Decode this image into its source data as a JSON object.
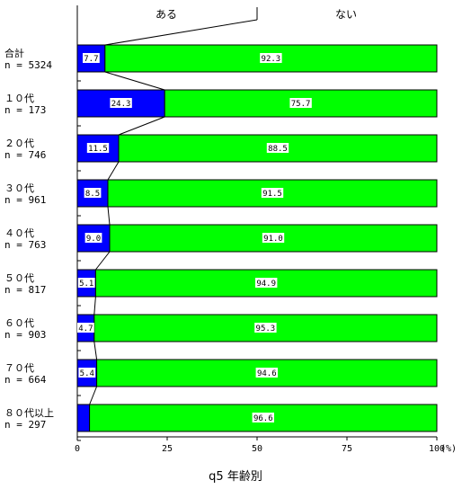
{
  "chart_data": {
    "type": "bar",
    "stacked": true,
    "orientation": "horizontal",
    "title": "q5 年齢別",
    "series": [
      {
        "name": "ある",
        "color": "#0000ff",
        "values": [
          7.7,
          24.3,
          11.5,
          8.5,
          9.0,
          5.1,
          4.7,
          5.4,
          3.4
        ],
        "labels": [
          "7.7",
          "24.3",
          "11.5",
          "8.5",
          "9.0",
          "5.1",
          "4.7",
          "5.4",
          ""
        ]
      },
      {
        "name": "ない",
        "color": "#00ff00",
        "values": [
          92.3,
          75.7,
          88.5,
          91.5,
          91.0,
          94.9,
          95.3,
          94.6,
          96.6
        ],
        "labels": [
          "92.3",
          "75.7",
          "88.5",
          "91.5",
          "91.0",
          "94.9",
          "95.3",
          "94.6",
          "96.6"
        ]
      }
    ],
    "categories": [
      {
        "name": "合計",
        "n": "n = 5324"
      },
      {
        "name": "１０代",
        "n": "n = 173"
      },
      {
        "name": "２０代",
        "n": "n = 746"
      },
      {
        "name": "３０代",
        "n": "n = 961"
      },
      {
        "name": "４０代",
        "n": "n = 763"
      },
      {
        "name": "５０代",
        "n": "n = 817"
      },
      {
        "name": "６０代",
        "n": "n = 903"
      },
      {
        "name": "７０代",
        "n": "n = 664"
      },
      {
        "name": "８０代以上",
        "n": "n = 297"
      }
    ],
    "xlim": [
      0,
      100
    ],
    "xticks": [
      "0",
      "25",
      "50",
      "75",
      "100"
    ],
    "x_unit": "(%)",
    "connector_lines": true
  }
}
